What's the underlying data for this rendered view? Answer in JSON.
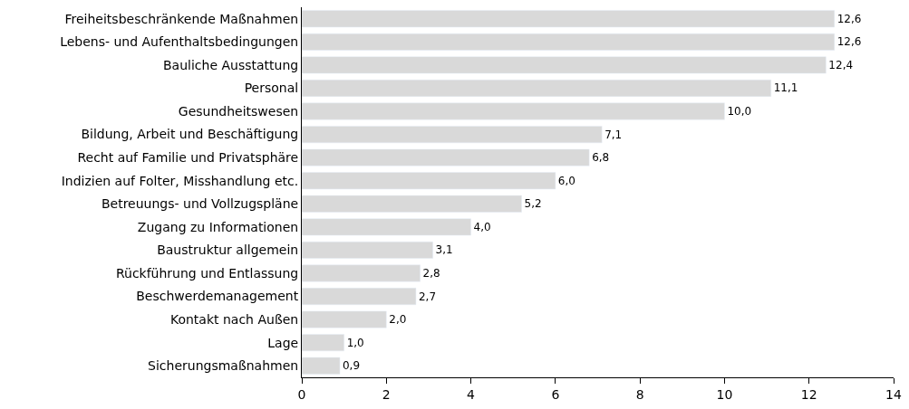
{
  "chart_data": {
    "type": "bar",
    "orientation": "horizontal",
    "categories": [
      "Freiheitsbeschränkende Maßnahmen",
      "Lebens- und Aufenthaltsbedingungen",
      "Bauliche Ausstattung",
      "Personal",
      "Gesundheitswesen",
      "Bildung, Arbeit und Beschäftigung",
      "Recht auf Familie und Privatsphäre",
      "Indizien auf Folter, Misshandlung etc.",
      "Betreuungs- und Vollzugspläne",
      "Zugang zu Informationen",
      "Baustruktur allgemein",
      "Rückführung und Entlassung",
      "Beschwerdemanagement",
      "Kontakt nach Außen",
      "Lage",
      "Sicherungsmaßnahmen"
    ],
    "values": [
      12.6,
      12.6,
      12.4,
      11.1,
      10.0,
      7.1,
      6.8,
      6.0,
      5.2,
      4.0,
      3.1,
      2.8,
      2.7,
      2.0,
      1.0,
      0.9
    ],
    "value_labels": [
      "12,6",
      "12,6",
      "12,4",
      "11,1",
      "10,0",
      "7,1",
      "6,8",
      "6,0",
      "5,2",
      "4,0",
      "3,1",
      "2,8",
      "2,7",
      "2,0",
      "1,0",
      "0,9"
    ],
    "color": "#d9d9d9",
    "xlim": [
      0,
      14
    ],
    "xticks": [
      0,
      2,
      4,
      6,
      8,
      10,
      12,
      14
    ]
  }
}
